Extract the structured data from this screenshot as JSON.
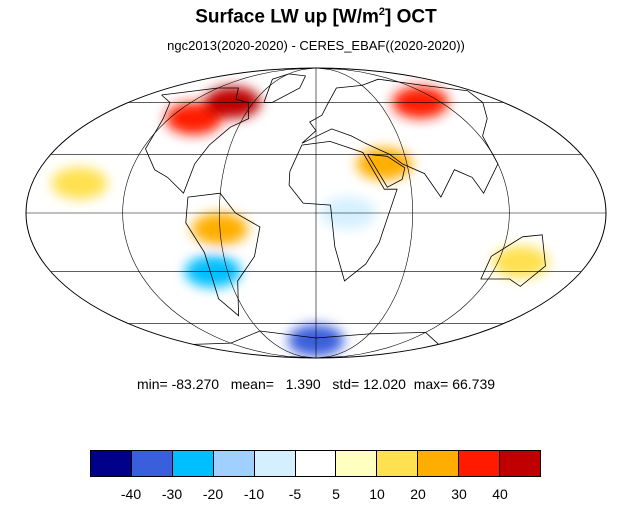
{
  "title": {
    "main": "Surface LW up [W/m",
    "sup": "2",
    "tail": "]  OCT"
  },
  "subtitle": "ngc2013(2020-2020) - CERES_EBAF((2020-2020))",
  "stats": {
    "min_label": "min=",
    "min": "-83.270",
    "mean_label": "mean=",
    "mean": "1.390",
    "std_label": "std=",
    "std": "12.020",
    "max_label": "max=",
    "max": "66.739"
  },
  "colorbar": {
    "colors": [
      "#00008b",
      "#3a5fdc",
      "#00bfff",
      "#9fd0ff",
      "#d4f0ff",
      "#ffffff",
      "#ffffc0",
      "#ffe050",
      "#ffae00",
      "#ff1a00",
      "#c00000"
    ],
    "tick_labels": [
      "-40",
      "-30",
      "-20",
      "-10",
      "-5",
      "5",
      "10",
      "20",
      "30",
      "40"
    ]
  },
  "map": {
    "projection": "mollweide",
    "field": "difference",
    "anomaly_regions": [
      {
        "name": "North America",
        "lon": -100,
        "lat": 50,
        "level": 30
      },
      {
        "name": "Canada north",
        "lon": -80,
        "lat": 60,
        "level": 40
      },
      {
        "name": "Amazon",
        "lon": -60,
        "lat": -8,
        "level": 20
      },
      {
        "name": "Andes",
        "lon": -70,
        "lat": -30,
        "level": -30
      },
      {
        "name": "Siberia",
        "lon": 100,
        "lat": 60,
        "level": 30
      },
      {
        "name": "Arabia",
        "lon": 45,
        "lat": 25,
        "level": 20
      },
      {
        "name": "Antarctica coast",
        "lon": 0,
        "lat": -72,
        "level": -40
      },
      {
        "name": "Central Africa",
        "lon": 20,
        "lat": 0,
        "level": -10
      },
      {
        "name": "Australia",
        "lon": 135,
        "lat": -25,
        "level": 10
      },
      {
        "name": "Tropical Pacific",
        "lon": -150,
        "lat": 15,
        "level": 10
      }
    ]
  }
}
